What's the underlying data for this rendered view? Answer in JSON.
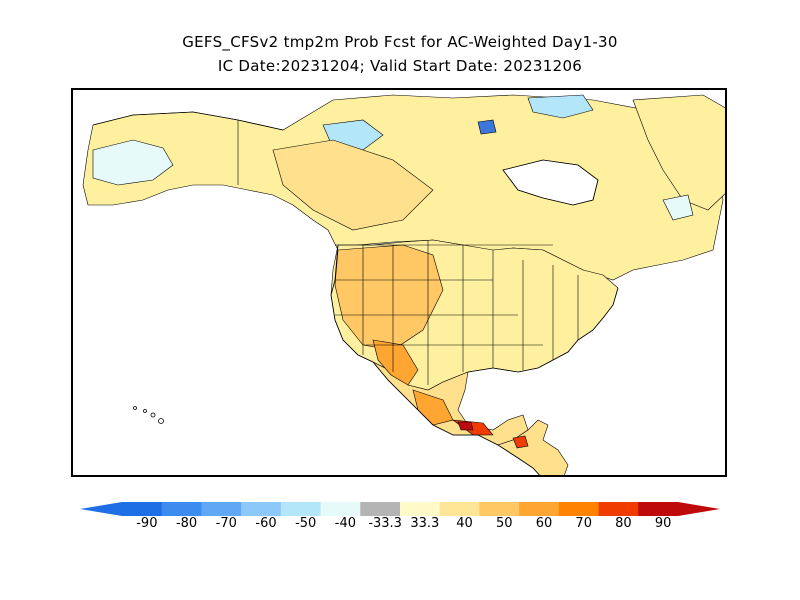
{
  "title": {
    "line1": "GEFS_CFSv2 tmp2m Prob Fcst for AC-Weighted Day1-30",
    "line2": "IC Date:20231204; Valid Start Date: 20231206"
  },
  "colorbar": {
    "labels": [
      "-90",
      "-80",
      "-70",
      "-60",
      "-50",
      "-40",
      "-33.3",
      "33.3",
      "40",
      "50",
      "60",
      "70",
      "80",
      "90"
    ],
    "colors": [
      "#1e6fe6",
      "#3c8cf0",
      "#5fa8f5",
      "#8cc8fa",
      "#b4e6fa",
      "#e6fafa",
      "#b4b4b4",
      "#fffac8",
      "#ffe696",
      "#ffc864",
      "#ffa532",
      "#ff8200",
      "#f03c00",
      "#be0a0a"
    ]
  },
  "palette": {
    "land_base": "#fff0a0",
    "warm_light": "#ffe08c",
    "warm_mid": "#ffc864",
    "warm_high": "#ffa532",
    "hot": "#f03c00",
    "hottest": "#be0a0a",
    "cold_light": "#e6fafa",
    "cold_mid": "#b4e6fa",
    "cold_deep": "#3c78dc",
    "neutral": "#b4b4b4",
    "ocean": "#ffffff",
    "outline": "#000000"
  },
  "map": {
    "region": "North America",
    "domain": "probabilistic 2m temperature forecast"
  }
}
